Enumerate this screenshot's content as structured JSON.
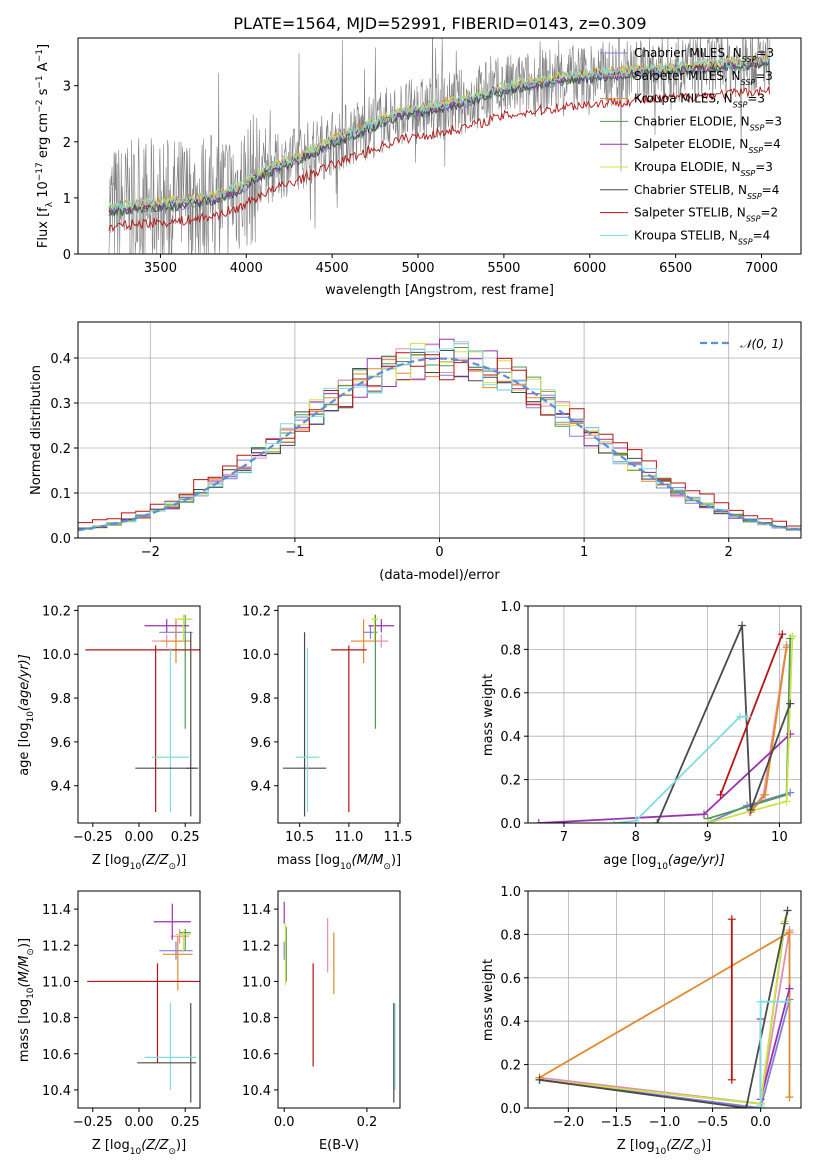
{
  "figure_title": "PLATE=1564, MJD=52991, FIBERID=0143, z=0.309",
  "colors": {
    "Chabrier MILES": "#7f7fe0",
    "Salpeter MILES": "#e58fb0",
    "Kroupa MILES": "#e08a2c",
    "Chabrier ELODIE": "#4e9a52",
    "Salpeter ELODIE": "#9a32b0",
    "Kroupa ELODIE": "#d2e04a",
    "Chabrier STELIB": "#4a4a4a",
    "Salpeter STELIB": "#b81414",
    "Kroupa STELIB": "#7fdde0",
    "data": "#808080",
    "normal": "#5a8fd6"
  },
  "chart_data": [
    {
      "id": "spectrum",
      "type": "line",
      "xlabel": "wavelength [Angstrom, rest frame]",
      "ylabel_base": "Flux [f",
      "ylabel_sub": "λ",
      "ylabel_rest": " 10",
      "ylabel_exp1": "−17",
      "ylabel_mid": " erg cm",
      "ylabel_exp2": "−2",
      "ylabel_mid2": " s",
      "ylabel_exp3": "−1",
      "ylabel_end": " A",
      "ylabel_exp4": "−1",
      "ylabel_close": "]",
      "xlim": [
        3020,
        7230
      ],
      "ylim": [
        0,
        3.85
      ],
      "xticks": [
        3500,
        4000,
        4500,
        5000,
        5500,
        6000,
        6500,
        7000
      ],
      "yticks": [
        0,
        1,
        2,
        3
      ],
      "legend": [
        {
          "name": "Chabrier MILES",
          "nssp": "3"
        },
        {
          "name": "Salpeter MILES",
          "nssp": "3"
        },
        {
          "name": "Kroupa MILES",
          "nssp": "3"
        },
        {
          "name": "Chabrier ELODIE",
          "nssp": "3"
        },
        {
          "name": "Salpeter ELODIE",
          "nssp": "4"
        },
        {
          "name": "Kroupa ELODIE",
          "nssp": "3"
        },
        {
          "name": "Chabrier STELIB",
          "nssp": "4"
        },
        {
          "name": "Salpeter STELIB",
          "nssp": "2"
        },
        {
          "name": "Kroupa STELIB",
          "nssp": "4"
        }
      ],
      "legend_prefix": "N",
      "legend_sub": "SSP",
      "legend_placement": "right",
      "continuum": [
        [
          3200,
          0.78
        ],
        [
          3400,
          0.87
        ],
        [
          3600,
          0.9
        ],
        [
          3800,
          1.0
        ],
        [
          3950,
          1.15
        ],
        [
          4100,
          1.45
        ],
        [
          4300,
          1.7
        ],
        [
          4500,
          2.0
        ],
        [
          4700,
          2.25
        ],
        [
          4900,
          2.5
        ],
        [
          5100,
          2.6
        ],
        [
          5300,
          2.75
        ],
        [
          5500,
          2.95
        ],
        [
          5700,
          3.05
        ],
        [
          5900,
          3.15
        ],
        [
          6100,
          3.2
        ],
        [
          6300,
          3.25
        ],
        [
          6500,
          3.3
        ],
        [
          6700,
          3.35
        ],
        [
          6900,
          3.4
        ],
        [
          7050,
          3.45
        ]
      ]
    },
    {
      "id": "residuals",
      "type": "step",
      "xlabel": "(data-model)/error",
      "ylabel": "Normed distribution",
      "xlim": [
        -2.5,
        2.5
      ],
      "ylim": [
        0,
        0.48
      ],
      "xticks": [
        -2,
        -1,
        0,
        1,
        2
      ],
      "yticks": [
        0.0,
        0.1,
        0.2,
        0.3,
        0.4
      ],
      "grid": true,
      "legend": "𝒩(0, 1)",
      "legend_placement": "top-right",
      "bin_width": 0.1
    },
    {
      "id": "age-vs-Z",
      "type": "errorbar",
      "xlabel": "Z [log",
      "xlabel_sub": "10",
      "xlabel_rest": "(Z/Z",
      "xlabel_sub2": "⊙",
      "xlabel_end": ")]",
      "ylabel": "age  [log",
      "ylabel_sub": "10",
      "ylabel_rest": "(age/yr)]",
      "xlim": [
        -0.33,
        0.33
      ],
      "ylim": [
        9.23,
        10.22
      ],
      "xticks": [
        -0.25,
        0.0,
        0.25
      ],
      "yticks": [
        9.4,
        9.6,
        9.8,
        10.0,
        10.2
      ],
      "points": [
        {
          "model": "Chabrier MILES",
          "x": 0.2,
          "xerr": 0.09,
          "y": 10.1,
          "yerr": [
            0.03,
            0.03
          ]
        },
        {
          "model": "Salpeter MILES",
          "x": 0.15,
          "xerr": 0.08,
          "y": 10.06,
          "yerr": [
            0.03,
            0.03
          ]
        },
        {
          "model": "Kroupa MILES",
          "x": 0.2,
          "xerr": 0.08,
          "y": 10.06,
          "yerr": [
            0.1,
            0.1
          ]
        },
        {
          "model": "Chabrier ELODIE",
          "x": 0.25,
          "xerr": 0.03,
          "y": 10.16,
          "yerr": [
            0.5,
            0.02
          ]
        },
        {
          "model": "Salpeter ELODIE",
          "x": 0.15,
          "xerr": 0.12,
          "y": 10.13,
          "yerr": [
            0.03,
            0.03
          ]
        },
        {
          "model": "Kroupa ELODIE",
          "x": 0.24,
          "xerr": 0.05,
          "y": 10.16,
          "yerr": [
            0.1,
            0.02
          ]
        },
        {
          "model": "Chabrier STELIB",
          "x": 0.28,
          "xerr": 0.02,
          "y": 9.48,
          "yerr": [
            0.22,
            0.62
          ]
        },
        {
          "model": "Salpeter STELIB",
          "x": 0.09,
          "xerr": 0.38,
          "y": 10.02,
          "yerr": [
            0.74,
            0.02
          ]
        },
        {
          "model": "Kroupa STELIB",
          "x": 0.17,
          "xerr": 0.1,
          "y": 9.53,
          "yerr": [
            0.25,
            0.5
          ]
        },
        {
          "model": "Chabrier STELIB",
          "x": 0.15,
          "xerr": 0.17,
          "y": 9.48,
          "yerr": [
            0.0,
            0.0
          ]
        }
      ]
    },
    {
      "id": "age-vs-mass",
      "type": "errorbar",
      "xlabel": "mass [log",
      "xlabel_sub": "10",
      "xlabel_rest": "(M/M",
      "xlabel_sub2": "⊙",
      "xlabel_end": ")]",
      "xlim": [
        10.28,
        11.52
      ],
      "ylim": [
        9.23,
        10.22
      ],
      "xticks": [
        10.5,
        11.0,
        11.5
      ],
      "yticks": [
        9.4,
        9.6,
        9.8,
        10.0,
        10.2
      ],
      "points": [
        {
          "model": "Chabrier MILES",
          "x": 11.22,
          "xerr": 0.07,
          "y": 10.1,
          "yerr": [
            0.03,
            0.03
          ]
        },
        {
          "model": "Salpeter MILES",
          "x": 11.33,
          "xerr": 0.07,
          "y": 10.06,
          "yerr": [
            0.03,
            0.03
          ]
        },
        {
          "model": "Kroupa MILES",
          "x": 11.15,
          "xerr": 0.13,
          "y": 10.06,
          "yerr": [
            0.1,
            0.1
          ]
        },
        {
          "model": "Chabrier ELODIE",
          "x": 11.27,
          "xerr": 0.02,
          "y": 10.16,
          "yerr": [
            0.5,
            0.02
          ]
        },
        {
          "model": "Salpeter ELODIE",
          "x": 11.33,
          "xerr": 0.13,
          "y": 10.13,
          "yerr": [
            0.03,
            0.03
          ]
        },
        {
          "model": "Kroupa ELODIE",
          "x": 11.26,
          "xerr": 0.03,
          "y": 10.16,
          "yerr": [
            0.1,
            0.02
          ]
        },
        {
          "model": "Chabrier STELIB",
          "x": 10.55,
          "xerr": 0.22,
          "y": 9.48,
          "yerr": [
            0.22,
            0.62
          ]
        },
        {
          "model": "Salpeter STELIB",
          "x": 11.0,
          "xerr": 0.18,
          "y": 10.02,
          "yerr": [
            0.74,
            0.02
          ]
        },
        {
          "model": "Kroupa STELIB",
          "x": 10.58,
          "xerr": 0.12,
          "y": 9.53,
          "yerr": [
            0.25,
            0.5
          ]
        }
      ]
    },
    {
      "id": "weight-vs-age",
      "type": "line",
      "xlabel": "age  [log",
      "xlabel_sub": "10",
      "xlabel_rest": "(age/yr)]",
      "ylabel": "mass weight",
      "xlim": [
        6.5,
        10.3
      ],
      "ylim": [
        0,
        1.0
      ],
      "xticks": [
        7,
        8,
        9,
        10
      ],
      "yticks": [
        0.0,
        0.2,
        0.4,
        0.6,
        0.8,
        1.0
      ],
      "grid": true,
      "series": [
        {
          "model": "Chabrier MILES",
          "x": [
            9.0,
            9.55,
            10.15
          ],
          "y": [
            0.0,
            0.08,
            0.14
          ]
        },
        {
          "model": "Salpeter MILES",
          "x": [
            9.58,
            9.78,
            10.1
          ],
          "y": [
            0.05,
            0.13,
            0.82
          ]
        },
        {
          "model": "Kroupa MILES",
          "x": [
            9.6,
            9.8,
            10.1
          ],
          "y": [
            0.05,
            0.13,
            0.81
          ]
        },
        {
          "model": "Chabrier ELODIE",
          "x": [
            9.0,
            10.1,
            10.15
          ],
          "y": [
            0.02,
            0.13,
            0.85
          ]
        },
        {
          "model": "Salpeter ELODIE",
          "x": [
            6.65,
            8.95,
            10.15
          ],
          "y": [
            0.0,
            0.04,
            0.41
          ]
        },
        {
          "model": "Kroupa ELODIE",
          "x": [
            9.0,
            10.1,
            10.18
          ],
          "y": [
            0.0,
            0.1,
            0.86
          ]
        },
        {
          "model": "Chabrier STELIB",
          "x": [
            8.3,
            9.48,
            9.6,
            10.15
          ],
          "y": [
            0.0,
            0.91,
            0.06,
            0.55
          ]
        },
        {
          "model": "Salpeter STELIB",
          "x": [
            9.18,
            10.04
          ],
          "y": [
            0.13,
            0.87
          ]
        },
        {
          "model": "Kroupa STELIB",
          "x": [
            7.7,
            8.0,
            9.45,
            9.55
          ],
          "y": [
            0.0,
            0.01,
            0.49,
            0.49
          ]
        }
      ]
    },
    {
      "id": "mass-vs-Z",
      "type": "errorbar",
      "xlabel": "Z [log",
      "xlabel_sub": "10",
      "xlabel_rest": "(Z/Z",
      "xlabel_sub2": "⊙",
      "xlabel_end": ")]",
      "ylabel": "mass [log",
      "ylabel_sub": "10",
      "ylabel_rest": "(M/M",
      "ylabel_sub2": "⊙",
      "ylabel_end": ")]",
      "xlim": [
        -0.33,
        0.33
      ],
      "ylim": [
        10.3,
        11.5
      ],
      "xticks": [
        -0.25,
        0.0,
        0.25
      ],
      "yticks": [
        10.4,
        10.6,
        10.8,
        11.0,
        11.2,
        11.4
      ],
      "points": [
        {
          "model": "Chabrier MILES",
          "x": 0.2,
          "xerr": 0.09,
          "y": 11.17,
          "yerr": [
            0.05,
            0.05
          ]
        },
        {
          "model": "Salpeter MILES",
          "x": 0.22,
          "xerr": 0.05,
          "y": 11.25,
          "yerr": [
            0.04,
            0.04
          ]
        },
        {
          "model": "Kroupa MILES",
          "x": 0.21,
          "xerr": 0.08,
          "y": 11.15,
          "yerr": [
            0.2,
            0.1
          ]
        },
        {
          "model": "Chabrier ELODIE",
          "x": 0.25,
          "xerr": 0.03,
          "y": 11.27,
          "yerr": [
            0.1,
            0.02
          ]
        },
        {
          "model": "Salpeter ELODIE",
          "x": 0.18,
          "xerr": 0.1,
          "y": 11.33,
          "yerr": [
            0.1,
            0.1
          ]
        },
        {
          "model": "Kroupa ELODIE",
          "x": 0.24,
          "xerr": 0.04,
          "y": 11.26,
          "yerr": [
            0.1,
            0.02
          ]
        },
        {
          "model": "Chabrier STELIB",
          "x": 0.28,
          "xerr": 0.0,
          "y": 10.55,
          "yerr": [
            0.22,
            0.33
          ]
        },
        {
          "model": "Salpeter STELIB",
          "x": 0.1,
          "xerr": 0.38,
          "y": 11.0,
          "yerr": [
            0.45,
            0.1
          ]
        },
        {
          "model": "Kroupa STELIB",
          "x": 0.17,
          "xerr": 0.14,
          "y": 10.58,
          "yerr": [
            0.18,
            0.3
          ]
        },
        {
          "model": "Chabrier STELIB",
          "x": 0.15,
          "xerr": 0.16,
          "y": 10.55,
          "yerr": [
            0.0,
            0.0
          ]
        }
      ]
    },
    {
      "id": "mass-vs-EBV",
      "type": "errorbar",
      "xlabel": "E(B-V)",
      "xlim": [
        -0.015,
        0.28
      ],
      "ylim": [
        10.3,
        11.5
      ],
      "xticks": [
        0.0,
        0.2
      ],
      "yticks": [
        10.4,
        10.6,
        10.8,
        11.0,
        11.2,
        11.4
      ],
      "points": [
        {
          "model": "Chabrier MILES",
          "x": 0.0,
          "y": 11.17,
          "yerr": [
            0.05,
            0.05
          ]
        },
        {
          "model": "Salpeter MILES",
          "x": 0.105,
          "y": 11.25,
          "yerr": [
            0.2,
            0.1
          ]
        },
        {
          "model": "Kroupa MILES",
          "x": 0.12,
          "y": 11.1,
          "yerr": [
            0.17,
            0.17
          ]
        },
        {
          "model": "Chabrier ELODIE",
          "x": 0.005,
          "y": 11.15,
          "yerr": [
            0.15,
            0.15
          ]
        },
        {
          "model": "Salpeter ELODIE",
          "x": 0.0,
          "y": 11.38,
          "yerr": [
            0.06,
            0.06
          ]
        },
        {
          "model": "Kroupa ELODIE",
          "x": 0.003,
          "y": 11.15,
          "yerr": [
            0.17,
            0.17
          ]
        },
        {
          "model": "Chabrier STELIB",
          "x": 0.265,
          "y": 10.55,
          "yerr": [
            0.22,
            0.33
          ]
        },
        {
          "model": "Salpeter STELIB",
          "x": 0.07,
          "y": 10.8,
          "yerr": [
            0.27,
            0.3
          ]
        },
        {
          "model": "Kroupa STELIB",
          "x": 0.268,
          "y": 10.58,
          "yerr": [
            0.18,
            0.3
          ]
        }
      ]
    },
    {
      "id": "weight-vs-Z",
      "type": "line",
      "xlabel": "Z [log",
      "xlabel_sub": "10",
      "xlabel_rest": "(Z/Z",
      "xlabel_sub2": "⊙",
      "xlabel_end": ")]",
      "ylabel": "mass weight",
      "xlim": [
        -2.42,
        0.42
      ],
      "ylim": [
        0,
        1.0
      ],
      "xticks": [
        -2.0,
        -1.5,
        -1.0,
        -0.5,
        0.0
      ],
      "yticks": [
        0.0,
        0.2,
        0.4,
        0.6,
        0.8,
        1.0
      ],
      "grid": true,
      "series": [
        {
          "model": "Chabrier MILES",
          "x": [
            -2.3,
            0.0,
            0.3
          ],
          "y": [
            0.13,
            0.0,
            0.5
          ]
        },
        {
          "model": "Salpeter MILES",
          "x": [
            -2.3,
            0.0,
            0.3
          ],
          "y": [
            0.14,
            0.02,
            0.82
          ]
        },
        {
          "model": "Kroupa MILES",
          "x": [
            -2.3,
            0.3,
            0.3
          ],
          "y": [
            0.14,
            0.81,
            0.05
          ]
        },
        {
          "model": "Chabrier ELODIE",
          "x": [
            -2.3,
            0.0,
            0.25
          ],
          "y": [
            0.13,
            0.02,
            0.85
          ]
        },
        {
          "model": "Salpeter ELODIE",
          "x": [
            0.0,
            0.0,
            0.3
          ],
          "y": [
            0.41,
            0.04,
            0.55
          ]
        },
        {
          "model": "Kroupa ELODIE",
          "x": [
            -2.3,
            0.0,
            0.25
          ],
          "y": [
            0.13,
            0.02,
            0.86
          ]
        },
        {
          "model": "Chabrier STELIB",
          "x": [
            -2.3,
            -0.15,
            0.28
          ],
          "y": [
            0.13,
            0.0,
            0.91
          ]
        },
        {
          "model": "Salpeter STELIB",
          "x": [
            -0.3,
            -0.3
          ],
          "y": [
            0.13,
            0.87
          ]
        },
        {
          "model": "Kroupa STELIB",
          "x": [
            0.0,
            0.0,
            0.28
          ],
          "y": [
            0.01,
            0.49,
            0.49
          ]
        }
      ]
    }
  ]
}
